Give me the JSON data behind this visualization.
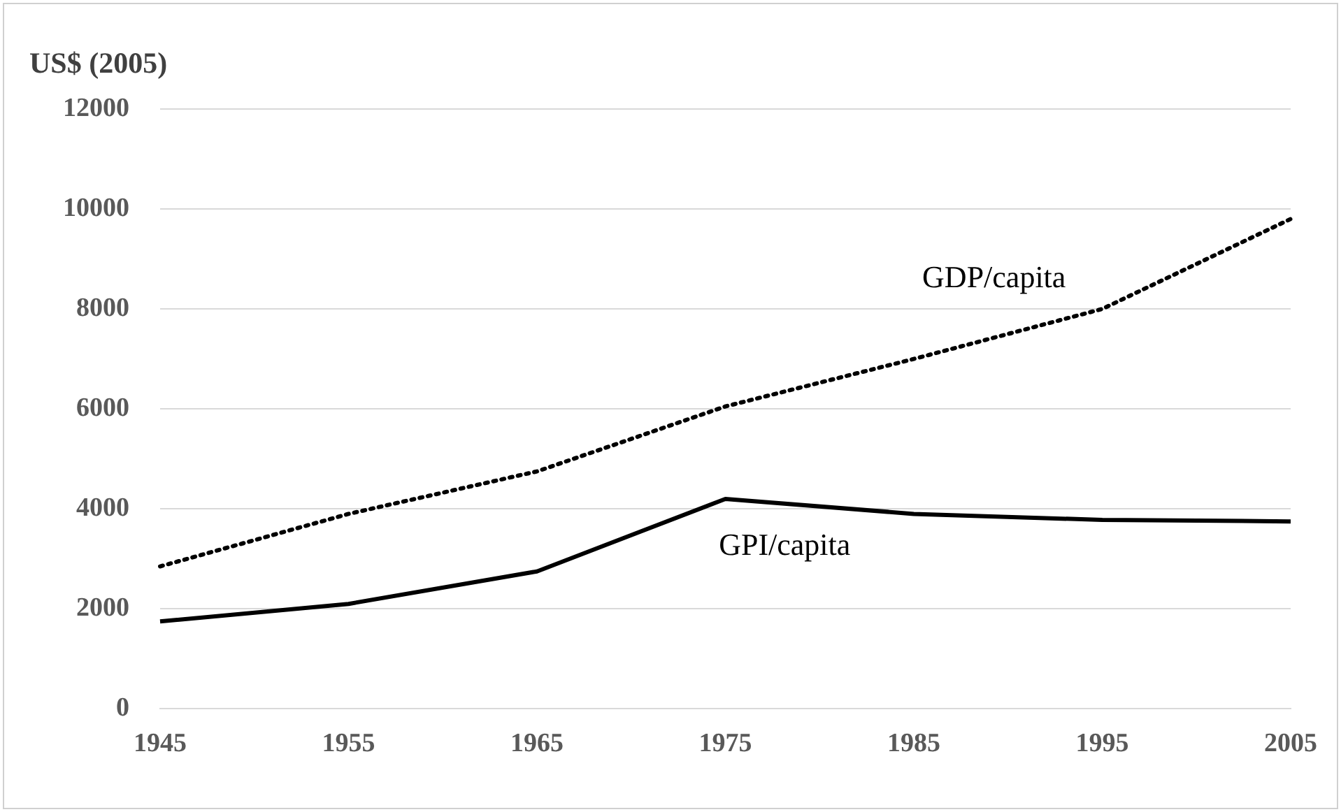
{
  "chart_data": {
    "type": "line",
    "ylabel": "US$ (2005)",
    "categories": [
      "1945",
      "1955",
      "1965",
      "1975",
      "1985",
      "1995",
      "2005"
    ],
    "series": [
      {
        "name": "GDP/capita",
        "color": "#000000",
        "line_style": "dotted",
        "values": [
          2850,
          3900,
          4750,
          6050,
          7000,
          8000,
          9800
        ]
      },
      {
        "name": "GPI/capita",
        "color": "#000000",
        "line_style": "solid",
        "values": [
          1750,
          2100,
          2750,
          4200,
          3900,
          3780,
          3750
        ]
      }
    ],
    "ylim": [
      0,
      12000
    ],
    "yticks": [
      0,
      2000,
      4000,
      6000,
      8000,
      10000,
      12000
    ],
    "grid": "y",
    "legend": false,
    "marker": "none"
  }
}
